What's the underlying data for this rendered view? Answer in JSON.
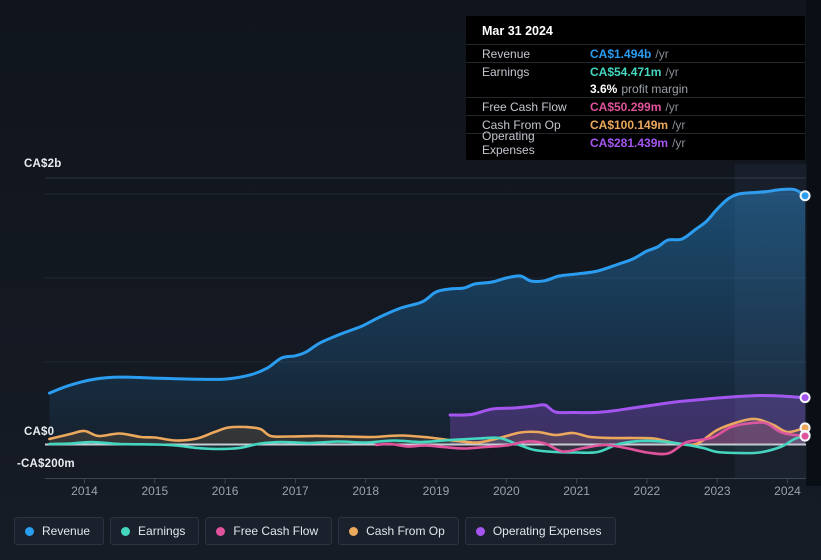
{
  "colors": {
    "revenue": "#2b9df0",
    "earnings": "#45d6c0",
    "free_cash_flow": "#e0539c",
    "cash_from_op": "#eca85c",
    "operating_expenses": "#a455f0",
    "zero_line": "#c6ccd4",
    "grid_bright": "#2b3340",
    "grid": "#222935",
    "axis": "#3d4450",
    "tick_label": "#9aa1ab"
  },
  "tooltip": {
    "date": "Mar 31 2024",
    "rows": {
      "revenue": {
        "label": "Revenue",
        "value": "CA$1.494b",
        "suffix": "/yr"
      },
      "earnings": {
        "label": "Earnings",
        "value": "CA$54.471m",
        "suffix": "/yr"
      },
      "margin": {
        "value": "3.6%",
        "label": "profit margin"
      },
      "fcf": {
        "label": "Free Cash Flow",
        "value": "CA$50.299m",
        "suffix": "/yr"
      },
      "cashop": {
        "label": "Cash From Op",
        "value": "CA$100.149m",
        "suffix": "/yr"
      },
      "opex": {
        "label": "Operating Expenses",
        "value": "CA$281.439m",
        "suffix": "/yr"
      }
    }
  },
  "y_axis": {
    "labels": [
      "CA$2b",
      "CA$0",
      "-CA$200m"
    ]
  },
  "x_axis": {
    "years": [
      2014,
      2015,
      2016,
      2017,
      2018,
      2019,
      2020,
      2021,
      2022,
      2023,
      2024
    ]
  },
  "legend": {
    "items": [
      {
        "label": "Revenue",
        "series": "revenue"
      },
      {
        "label": "Earnings",
        "series": "earnings"
      },
      {
        "label": "Free Cash Flow",
        "series": "free_cash_flow"
      },
      {
        "label": "Cash From Op",
        "series": "cash_from_op"
      },
      {
        "label": "Operating Expenses",
        "series": "operating_expenses"
      }
    ]
  },
  "chart_data": {
    "type": "area",
    "x_unit": "year",
    "y_unit": "CA$ millions",
    "x_range": [
      2013.4,
      2024.3
    ],
    "y_gridline_values_m": [
      2000,
      0,
      -200
    ],
    "highlight_window_years": [
      2023.25,
      2024.28
    ],
    "series": [
      {
        "name": "Revenue",
        "key": "revenue",
        "points": [
          [
            2013.5,
            309
          ],
          [
            2013.8,
            357
          ],
          [
            2014.15,
            393
          ],
          [
            2014.5,
            405
          ],
          [
            2015,
            399
          ],
          [
            2015.5,
            393
          ],
          [
            2016,
            393
          ],
          [
            2016.35,
            417
          ],
          [
            2016.6,
            459
          ],
          [
            2016.8,
            519
          ],
          [
            2017,
            533
          ],
          [
            2017.15,
            555
          ],
          [
            2017.35,
            610
          ],
          [
            2017.65,
            664
          ],
          [
            2017.95,
            712
          ],
          [
            2018.2,
            766
          ],
          [
            2018.5,
            820
          ],
          [
            2018.8,
            856
          ],
          [
            2019,
            916
          ],
          [
            2019.2,
            934
          ],
          [
            2019.4,
            940
          ],
          [
            2019.55,
            964
          ],
          [
            2019.8,
            976
          ],
          [
            2020,
            1000
          ],
          [
            2020.2,
            1012
          ],
          [
            2020.35,
            982
          ],
          [
            2020.55,
            984
          ],
          [
            2020.75,
            1012
          ],
          [
            2021,
            1024
          ],
          [
            2021.3,
            1042
          ],
          [
            2021.6,
            1084
          ],
          [
            2021.8,
            1114
          ],
          [
            2022,
            1162
          ],
          [
            2022.15,
            1186
          ],
          [
            2022.3,
            1228
          ],
          [
            2022.5,
            1234
          ],
          [
            2022.7,
            1294
          ],
          [
            2022.85,
            1342
          ],
          [
            2023,
            1414
          ],
          [
            2023.15,
            1474
          ],
          [
            2023.3,
            1504
          ],
          [
            2023.5,
            1513
          ],
          [
            2023.7,
            1519
          ],
          [
            2023.9,
            1531
          ],
          [
            2024.1,
            1531
          ],
          [
            2024.25,
            1494
          ]
        ]
      },
      {
        "name": "Operating Expenses",
        "key": "operating_expenses",
        "points": [
          [
            2019.2,
            177
          ],
          [
            2019.5,
            180
          ],
          [
            2019.8,
            213
          ],
          [
            2020.1,
            219
          ],
          [
            2020.4,
            231
          ],
          [
            2020.55,
            237
          ],
          [
            2020.7,
            195
          ],
          [
            2020.95,
            192
          ],
          [
            2021.25,
            192
          ],
          [
            2021.5,
            201
          ],
          [
            2021.8,
            219
          ],
          [
            2022.1,
            237
          ],
          [
            2022.4,
            255
          ],
          [
            2022.7,
            267
          ],
          [
            2023,
            279
          ],
          [
            2023.3,
            288
          ],
          [
            2023.6,
            294
          ],
          [
            2023.9,
            291
          ],
          [
            2024.25,
            281.4
          ]
        ]
      },
      {
        "name": "Cash From Op",
        "key": "cash_from_op",
        "points": [
          [
            2013.5,
            33
          ],
          [
            2013.8,
            63
          ],
          [
            2014,
            81
          ],
          [
            2014.2,
            51
          ],
          [
            2014.5,
            66
          ],
          [
            2014.8,
            45
          ],
          [
            2015,
            42
          ],
          [
            2015.3,
            24
          ],
          [
            2015.6,
            36
          ],
          [
            2015.85,
            75
          ],
          [
            2016.05,
            102
          ],
          [
            2016.3,
            105
          ],
          [
            2016.5,
            93
          ],
          [
            2016.65,
            51
          ],
          [
            2016.9,
            48
          ],
          [
            2017.3,
            51
          ],
          [
            2017.7,
            48
          ],
          [
            2018.1,
            45
          ],
          [
            2018.5,
            54
          ],
          [
            2018.9,
            42
          ],
          [
            2019.3,
            21
          ],
          [
            2019.6,
            12
          ],
          [
            2019.9,
            39
          ],
          [
            2020.2,
            72
          ],
          [
            2020.45,
            75
          ],
          [
            2020.7,
            57
          ],
          [
            2020.95,
            69
          ],
          [
            2021.2,
            45
          ],
          [
            2021.5,
            39
          ],
          [
            2021.8,
            39
          ],
          [
            2022.1,
            36
          ],
          [
            2022.4,
            9
          ],
          [
            2022.7,
            3
          ],
          [
            2023,
            87
          ],
          [
            2023.3,
            135
          ],
          [
            2023.55,
            153
          ],
          [
            2023.8,
            117
          ],
          [
            2024,
            75
          ],
          [
            2024.25,
            100.1
          ]
        ]
      },
      {
        "name": "Earnings",
        "key": "earnings",
        "points": [
          [
            2013.5,
            3
          ],
          [
            2013.8,
            6
          ],
          [
            2014.1,
            15
          ],
          [
            2014.5,
            3
          ],
          [
            2015,
            0
          ],
          [
            2015.3,
            -6
          ],
          [
            2015.6,
            -21
          ],
          [
            2015.9,
            -27
          ],
          [
            2016.2,
            -21
          ],
          [
            2016.5,
            6
          ],
          [
            2016.8,
            15
          ],
          [
            2017.2,
            9
          ],
          [
            2017.6,
            18
          ],
          [
            2018,
            12
          ],
          [
            2018.4,
            24
          ],
          [
            2018.8,
            15
          ],
          [
            2019.2,
            27
          ],
          [
            2019.6,
            36
          ],
          [
            2019.9,
            39
          ],
          [
            2020.15,
            3
          ],
          [
            2020.4,
            -33
          ],
          [
            2020.7,
            -45
          ],
          [
            2021,
            -48
          ],
          [
            2021.3,
            -45
          ],
          [
            2021.6,
            3
          ],
          [
            2021.9,
            21
          ],
          [
            2022.2,
            18
          ],
          [
            2022.5,
            3
          ],
          [
            2022.8,
            -21
          ],
          [
            2023,
            -45
          ],
          [
            2023.3,
            -51
          ],
          [
            2023.6,
            -48
          ],
          [
            2023.9,
            -15
          ],
          [
            2024.1,
            33
          ],
          [
            2024.25,
            54.5
          ]
        ]
      },
      {
        "name": "Free Cash Flow",
        "key": "free_cash_flow",
        "points": [
          [
            2018.15,
            -3
          ],
          [
            2018.35,
            3
          ],
          [
            2018.6,
            -12
          ],
          [
            2018.85,
            -6
          ],
          [
            2019.1,
            -15
          ],
          [
            2019.4,
            -24
          ],
          [
            2019.7,
            -15
          ],
          [
            2020,
            -6
          ],
          [
            2020.3,
            18
          ],
          [
            2020.55,
            6
          ],
          [
            2020.8,
            -42
          ],
          [
            2021.1,
            -21
          ],
          [
            2021.4,
            -3
          ],
          [
            2021.7,
            -21
          ],
          [
            2022,
            -48
          ],
          [
            2022.3,
            -54
          ],
          [
            2022.55,
            12
          ],
          [
            2022.75,
            27
          ],
          [
            2022.95,
            45
          ],
          [
            2023.2,
            105
          ],
          [
            2023.5,
            129
          ],
          [
            2023.7,
            127
          ],
          [
            2023.9,
            75
          ],
          [
            2024.1,
            57
          ],
          [
            2024.25,
            50.3
          ]
        ]
      }
    ]
  }
}
